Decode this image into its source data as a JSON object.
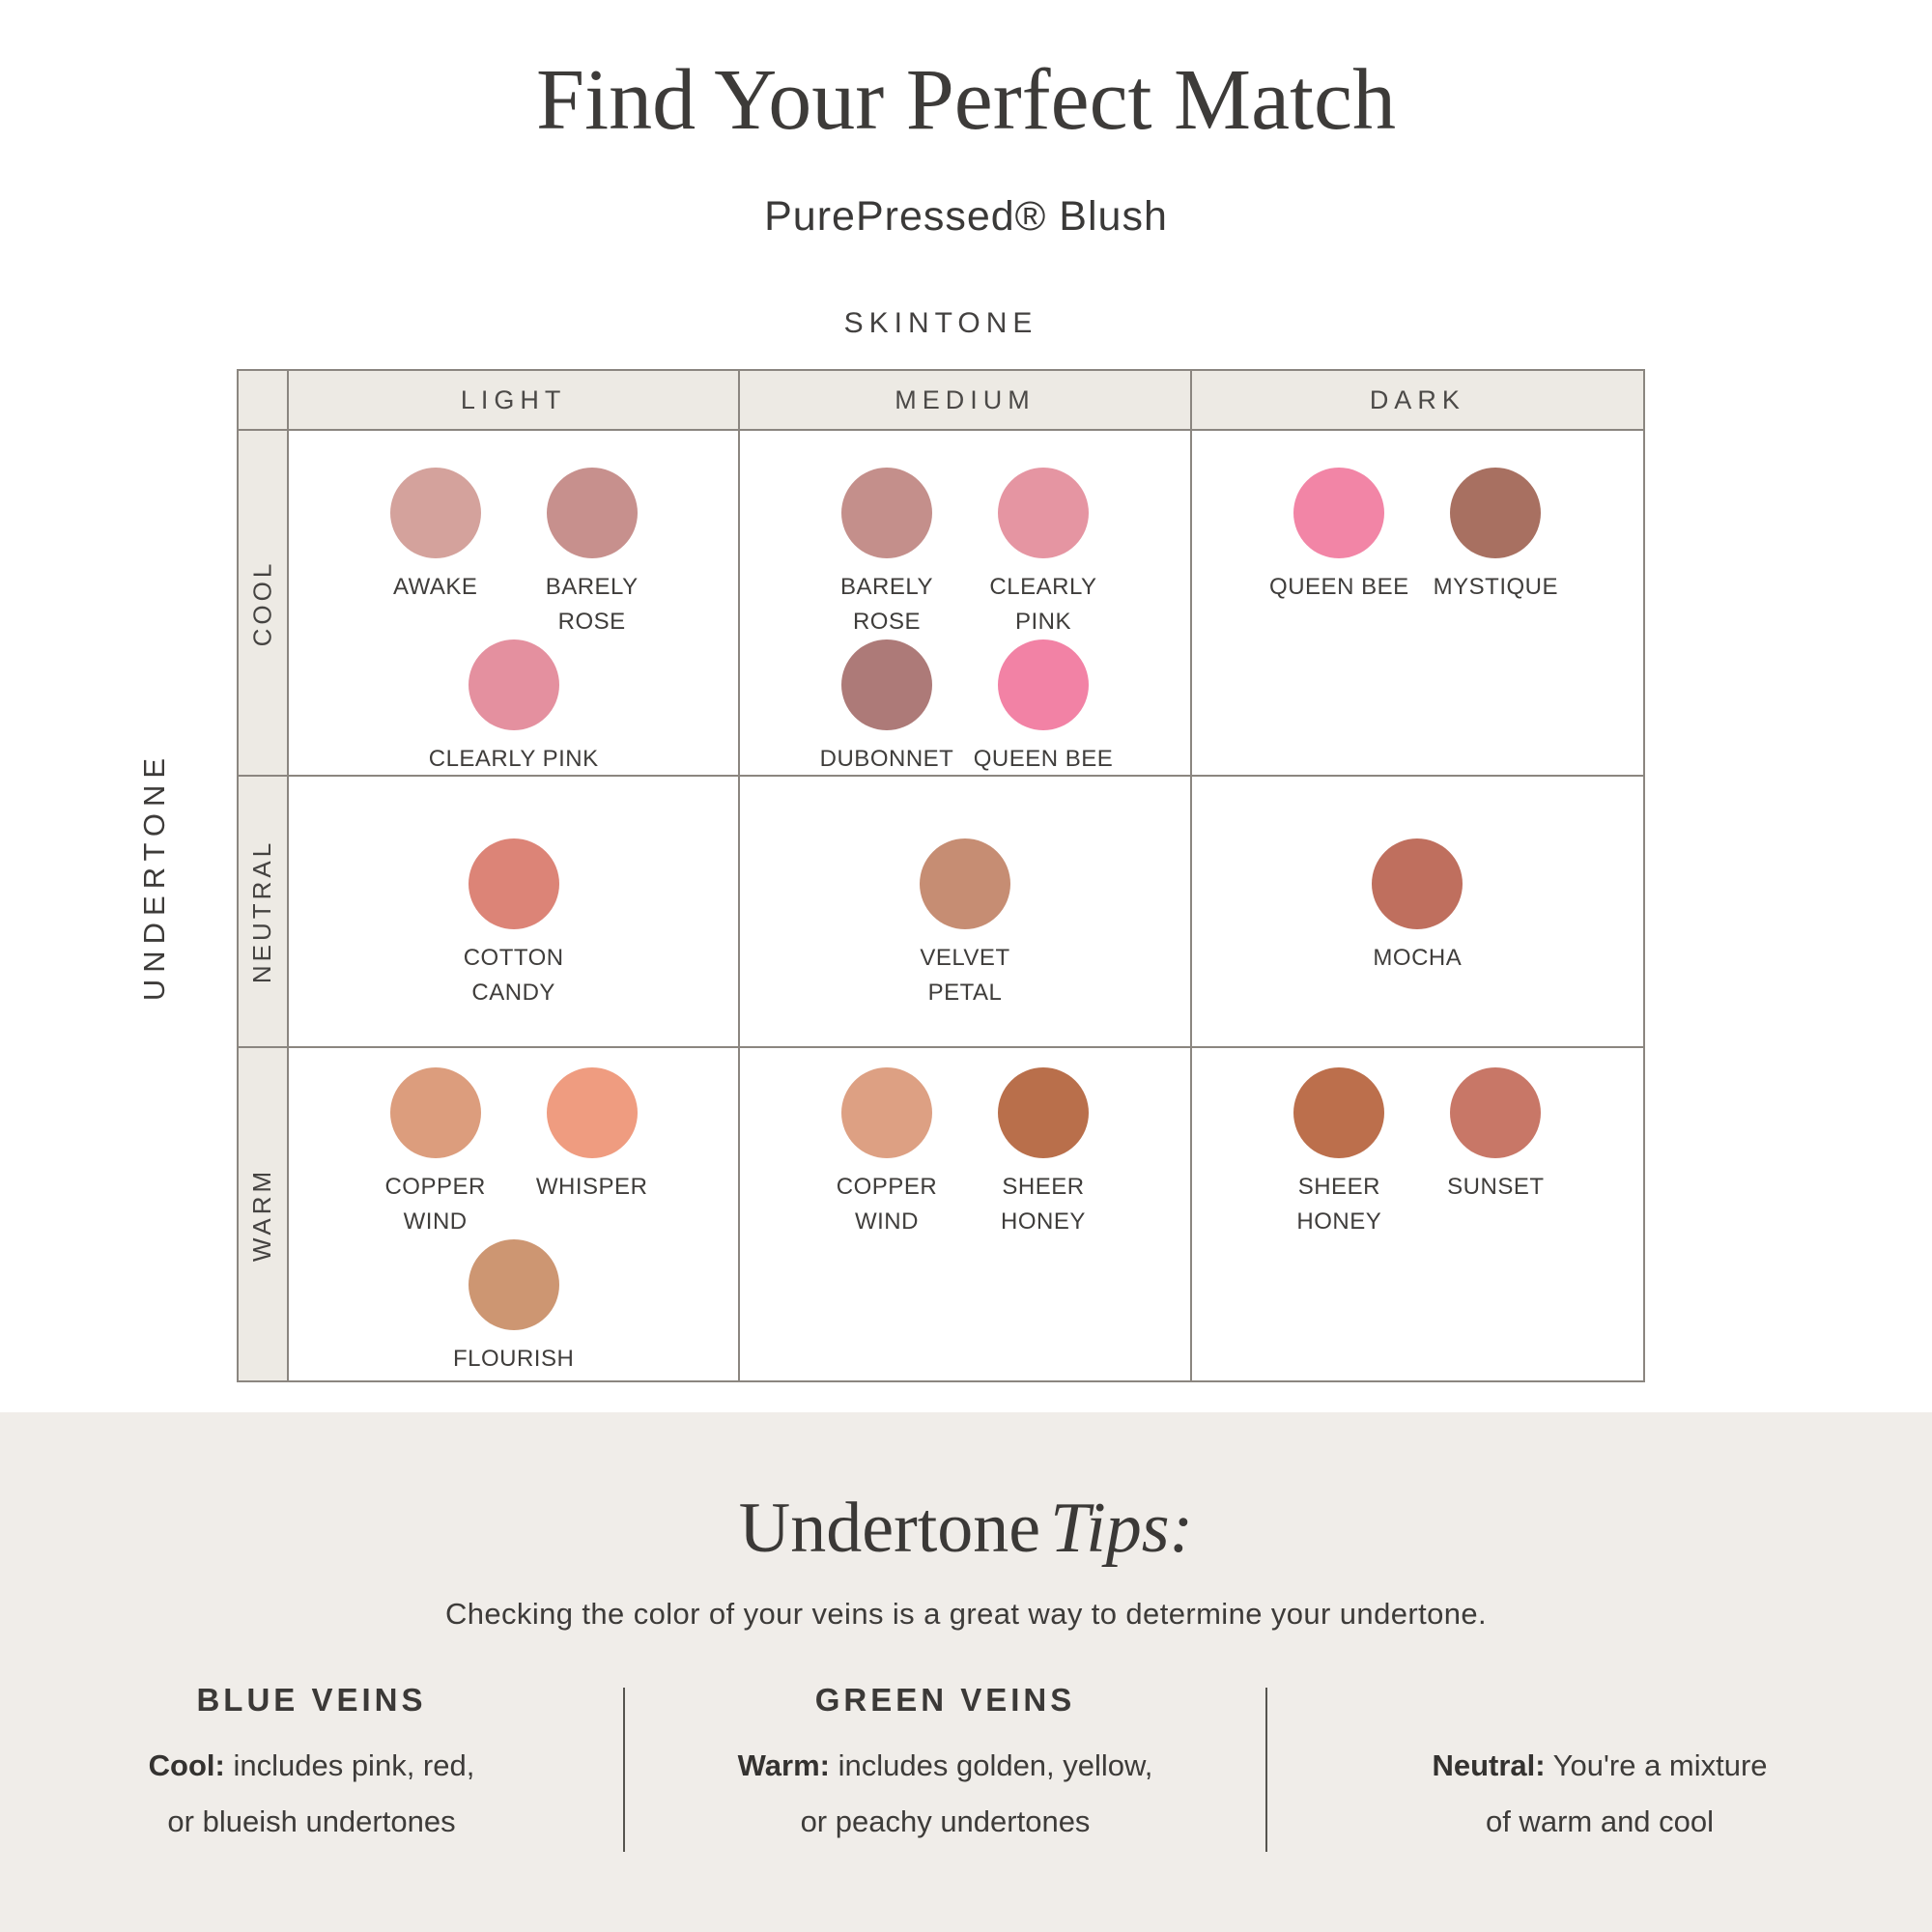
{
  "page": {
    "title": "Find Your Perfect Match",
    "subtitle": "PurePressed® Blush"
  },
  "matrix": {
    "skintone_label": "SKINTONE",
    "undertone_label": "UNDERTONE",
    "column_headers": [
      "LIGHT",
      "MEDIUM",
      "DARK"
    ],
    "row_headers": [
      "COOL",
      "NEUTRAL",
      "WARM"
    ],
    "cells": {
      "cool_light": {
        "rows": [
          [
            {
              "name": "AWAKE",
              "color": "#d4a29c"
            },
            {
              "name": "BARELY\nROSE",
              "color": "#c7908d"
            }
          ],
          [
            {
              "name": "CLEARLY PINK",
              "color": "#e4909f"
            }
          ]
        ]
      },
      "cool_medium": {
        "rows": [
          [
            {
              "name": "BARELY\nROSE",
              "color": "#c48f8b"
            },
            {
              "name": "CLEARLY\nPINK",
              "color": "#e595a2"
            }
          ],
          [
            {
              "name": "DUBONNET",
              "color": "#ad7a78"
            },
            {
              "name": "QUEEN BEE",
              "color": "#f282a5"
            }
          ]
        ]
      },
      "cool_dark": {
        "rows": [
          [
            {
              "name": "QUEEN BEE",
              "color": "#f285a6"
            },
            {
              "name": "MYSTIQUE",
              "color": "#a87061"
            }
          ]
        ]
      },
      "neutral_light": {
        "rows": [
          [
            {
              "name": "COTTON\nCANDY",
              "color": "#dc8477"
            }
          ]
        ]
      },
      "neutral_medium": {
        "rows": [
          [
            {
              "name": "VELVET\nPETAL",
              "color": "#c68d73"
            }
          ]
        ]
      },
      "neutral_dark": {
        "rows": [
          [
            {
              "name": "MOCHA",
              "color": "#bf6f5e"
            }
          ]
        ]
      },
      "warm_light": {
        "rows": [
          [
            {
              "name": "COPPER\nWIND",
              "color": "#dc9d7d"
            },
            {
              "name": "WHISPER",
              "color": "#ef9c80"
            }
          ],
          [
            {
              "name": "FLOURISH",
              "color": "#cd9672"
            }
          ]
        ]
      },
      "warm_medium": {
        "rows": [
          [
            {
              "name": "COPPER\nWIND",
              "color": "#dda083"
            },
            {
              "name": "SHEER\nHONEY",
              "color": "#b96f4b"
            }
          ]
        ]
      },
      "warm_dark": {
        "rows": [
          [
            {
              "name": "SHEER\nHONEY",
              "color": "#bc6f4c"
            },
            {
              "name": "SUNSET",
              "color": "#c87767"
            }
          ]
        ]
      }
    }
  },
  "tips": {
    "heading_main": "Undertone",
    "heading_italic": "Tips:",
    "description": "Checking the color of your veins is a great way to determine your undertone.",
    "columns": [
      {
        "heading": "BLUE VEINS",
        "lead": "Cool:",
        "text": "includes pink, red,\nor blueish undertones"
      },
      {
        "heading": "GREEN VEINS",
        "lead": "Warm:",
        "text": "includes golden, yellow,\nor peachy undertones"
      },
      {
        "heading": "",
        "lead": "Neutral:",
        "text": "You're a mixture\nof warm and cool"
      }
    ]
  }
}
